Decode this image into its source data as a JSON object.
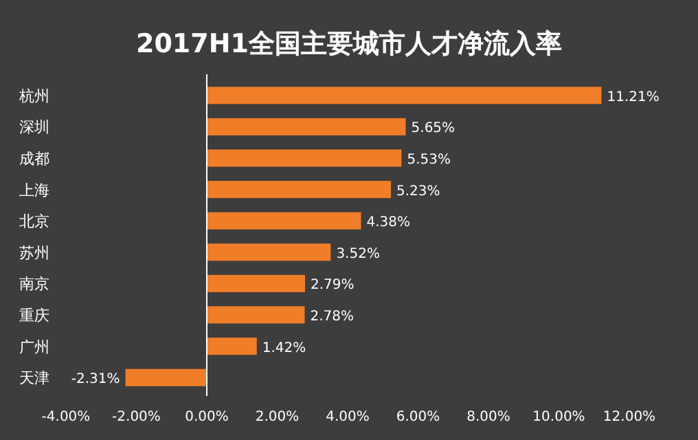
{
  "chart_data": {
    "type": "bar",
    "orientation": "horizontal",
    "title": "2017H1全国主要城市人才净流入率",
    "categories": [
      "杭州",
      "深圳",
      "成都",
      "上海",
      "北京",
      "苏州",
      "南京",
      "重庆",
      "广州",
      "天津"
    ],
    "values": [
      11.21,
      5.65,
      5.53,
      5.23,
      4.38,
      3.52,
      2.79,
      2.78,
      1.42,
      -2.31
    ],
    "value_labels": [
      "11.21%",
      "5.65%",
      "5.53%",
      "5.23%",
      "4.38%",
      "3.52%",
      "2.79%",
      "2.78%",
      "1.42%",
      "-2.31%"
    ],
    "color": "#f07d28",
    "xlim": [
      -4,
      12
    ],
    "xticks": [
      {
        "value": -4,
        "label": "-4.00%"
      },
      {
        "value": -2,
        "label": "-2.00%"
      },
      {
        "value": 0,
        "label": "0.00%"
      },
      {
        "value": 2,
        "label": "2.00%"
      },
      {
        "value": 4,
        "label": "4.00%"
      },
      {
        "value": 6,
        "label": "6.00%"
      },
      {
        "value": 8,
        "label": "8.00%"
      },
      {
        "value": 10,
        "label": "10.00%"
      },
      {
        "value": 12,
        "label": "12.00%"
      }
    ]
  }
}
